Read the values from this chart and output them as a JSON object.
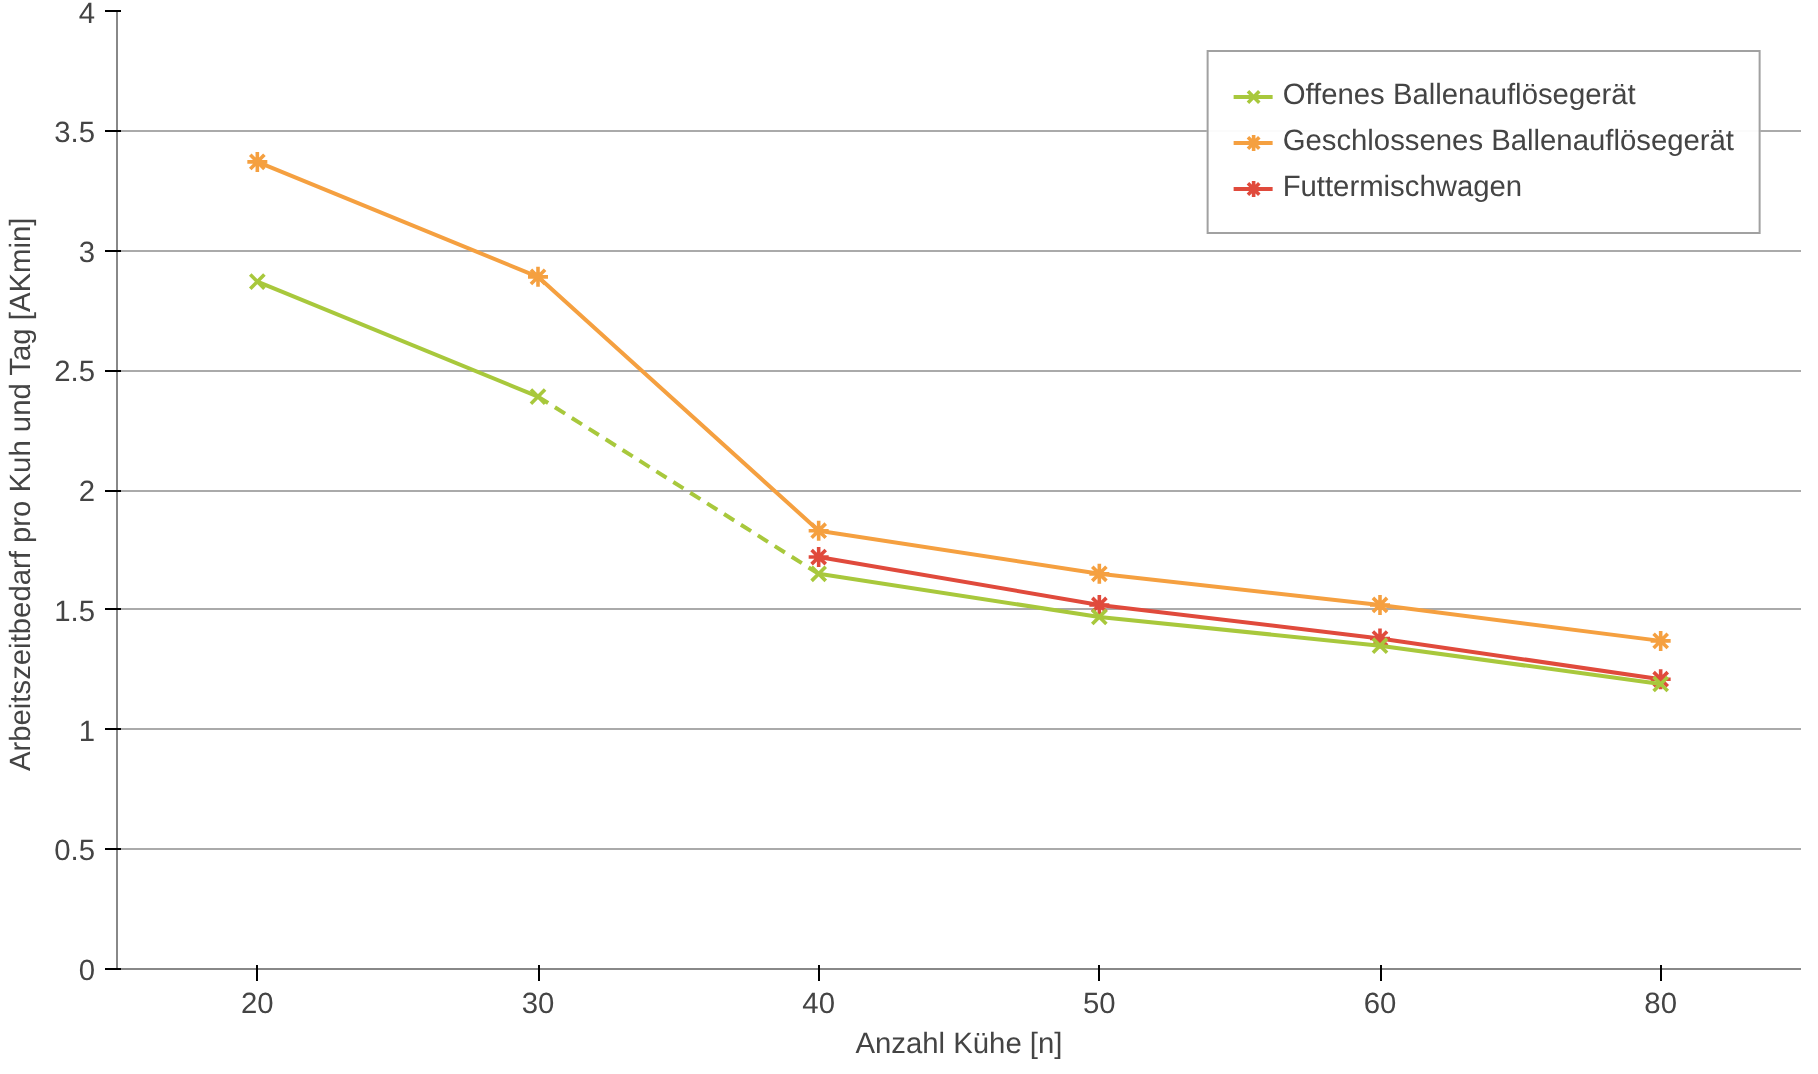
{
  "chart_data": {
    "type": "line",
    "xlabel": "Anzahl Kühe [n]",
    "ylabel": "Arbeitszeitbedarf pro Kuh und Tag  [AKmin]",
    "categories": [
      "20",
      "30",
      "40",
      "50",
      "60",
      "80"
    ],
    "series": [
      {
        "name": "Offenes Ballenauflösegerät",
        "color": "#a8c83c",
        "marker": "x",
        "values": [
          null,
          null,
          1.65,
          1.47,
          1.35,
          1.19
        ]
      },
      {
        "name": "Geschlossenes Ballenauflösegerät",
        "color": "#f5a040",
        "marker": "cross",
        "values": [
          3.37,
          2.89,
          1.83,
          1.65,
          1.52,
          1.37
        ]
      },
      {
        "name": "Futtermischwagen",
        "color": "#e04a3c",
        "marker": "cross",
        "x": [
          "40",
          "50",
          "60",
          "80"
        ],
        "values": [
          1.72,
          1.52,
          1.38,
          1.21
        ]
      },
      {
        "color": "#a8c83c",
        "marker": "x",
        "values": [
          2.87,
          2.39,
          null,
          null,
          null,
          null
        ]
      },
      {
        "color": "#a8c83c",
        "marker": "none",
        "line_style": "dashed",
        "values": [
          null,
          2.39,
          1.65,
          null,
          null,
          null
        ]
      }
    ],
    "ylim": [
      0,
      4
    ],
    "yticks": [
      0,
      0.5,
      1,
      1.5,
      2,
      2.5,
      3,
      3.5,
      4
    ],
    "grid": "y",
    "legend": "top right"
  }
}
